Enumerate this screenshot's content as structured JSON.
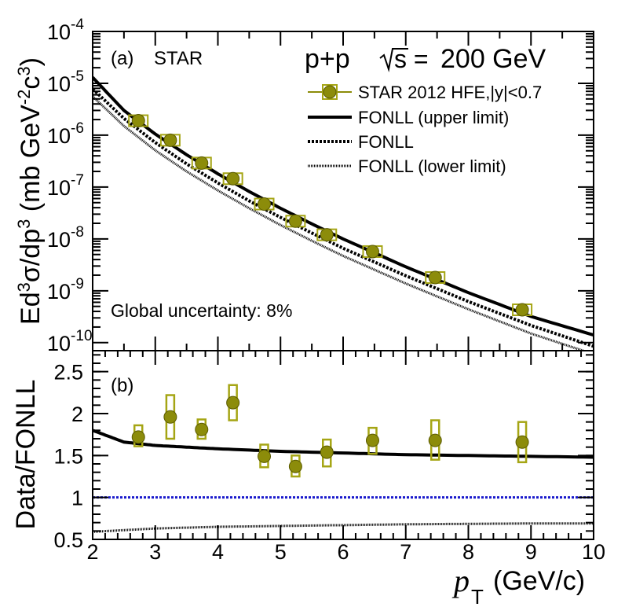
{
  "chart_data": [
    {
      "type": "scatter",
      "panel_label": "(a)",
      "experiment": "STAR",
      "collision": "p+p",
      "energy": "200 GeV",
      "ylabel": "Ed³σ/dp³ (mb GeV⁻²c³)",
      "yscale": "log",
      "ylim": [
        7e-11,
        0.0001
      ],
      "xlim": [
        2,
        10
      ],
      "ytick_exponents": [
        -10,
        -9,
        -8,
        -7,
        -6,
        -5,
        -4
      ],
      "global_uncertainty": "Global uncertainty: 8%",
      "legend": [
        {
          "name": "STAR 2012 HFE,|y|<0.7",
          "style": "marker"
        },
        {
          "name": "FONLL (upper limit)",
          "style": "solid"
        },
        {
          "name": "FONLL",
          "style": "dashed"
        },
        {
          "name": "FONLL (lower limit)",
          "style": "dotted"
        }
      ],
      "series": [
        {
          "name": "STAR 2012 HFE,|y|<0.7",
          "x": [
            2.73,
            3.24,
            3.74,
            4.24,
            4.74,
            5.24,
            5.74,
            6.47,
            7.47,
            8.86
          ],
          "y": [
            1.9e-06,
            8e-07,
            2.9e-07,
            1.45e-07,
            4.7e-08,
            2.2e-08,
            1.2e-08,
            5.7e-09,
            1.8e-09,
            4.3e-10
          ]
        },
        {
          "name": "FONLL (upper limit)",
          "x": [
            2,
            2.5,
            3,
            3.5,
            4,
            4.5,
            5,
            5.5,
            6,
            7,
            8,
            9,
            10
          ],
          "y": [
            1.3e-05,
            3e-06,
            1.05e-06,
            4.2e-07,
            1.8e-07,
            8.2e-08,
            3.9e-08,
            1.95e-08,
            1e-08,
            2.9e-09,
            9.2e-10,
            3.2e-10,
            1.4e-10
          ]
        },
        {
          "name": "FONLL",
          "x": [
            2,
            2.5,
            3,
            3.5,
            4,
            4.5,
            5,
            5.5,
            6,
            7,
            8,
            9,
            10
          ],
          "y": [
            7.8e-06,
            2.1e-06,
            7.2e-07,
            2.8e-07,
            1.2e-07,
            5.4e-08,
            2.6e-08,
            1.3e-08,
            6.6e-09,
            1.95e-09,
            6.2e-10,
            2.15e-10,
            8.5e-11
          ]
        },
        {
          "name": "FONLL (lower limit)",
          "x": [
            2,
            2.5,
            3,
            3.5,
            4,
            4.5,
            5,
            5.5,
            6,
            7,
            8,
            9,
            10
          ],
          "y": [
            5.6e-06,
            1.5e-06,
            5.1e-07,
            2e-07,
            8.6e-08,
            3.9e-08,
            1.85e-08,
            9.2e-09,
            4.7e-09,
            1.38e-09,
            4.4e-10,
            1.5e-10,
            6e-11
          ]
        }
      ]
    },
    {
      "type": "scatter",
      "panel_label": "(b)",
      "ylabel": "Data/FONLL",
      "xlabel": "p_T (GeV/c)",
      "xlabel_main": "p",
      "xlabel_sub": "T",
      "xlabel_units": "(GeV/c)",
      "xlim": [
        2,
        10
      ],
      "ylim": [
        0.5,
        2.75
      ],
      "xticks": [
        "2",
        "3",
        "4",
        "5",
        "6",
        "7",
        "8",
        "9",
        "10"
      ],
      "yticks": [
        "0.5",
        "1",
        "1.5",
        "2",
        "2.5"
      ],
      "reference_line": 1.0,
      "points": {
        "x": [
          2.73,
          3.24,
          3.74,
          4.24,
          4.74,
          5.24,
          5.74,
          6.47,
          7.47,
          8.86
        ],
        "y": [
          1.72,
          1.96,
          1.81,
          2.13,
          1.49,
          1.37,
          1.54,
          1.68,
          1.68,
          1.66
        ],
        "sys_low": [
          1.61,
          1.7,
          1.7,
          1.92,
          1.36,
          1.25,
          1.37,
          1.52,
          1.45,
          1.42
        ],
        "sys_high": [
          1.86,
          2.22,
          1.93,
          2.34,
          1.63,
          1.5,
          1.69,
          1.83,
          1.92,
          1.9
        ]
      },
      "upper_ratio": {
        "x": [
          2,
          2.5,
          3,
          3.5,
          4,
          5,
          6,
          7,
          8,
          9,
          10
        ],
        "y": [
          1.8,
          1.66,
          1.62,
          1.6,
          1.58,
          1.55,
          1.53,
          1.51,
          1.5,
          1.49,
          1.48
        ]
      },
      "lower_ratio": {
        "x": [
          2,
          2.5,
          3,
          4,
          5,
          6,
          7,
          8,
          9,
          10
        ],
        "y": [
          0.59,
          0.61,
          0.63,
          0.65,
          0.66,
          0.67,
          0.68,
          0.685,
          0.69,
          0.69
        ]
      }
    }
  ],
  "colors": {
    "marker_fill": "#8c8c0a",
    "marker_edge": "#5a5a00",
    "box": "#a5a514",
    "ref_line": "#1a1acc",
    "curve": "#000000"
  }
}
